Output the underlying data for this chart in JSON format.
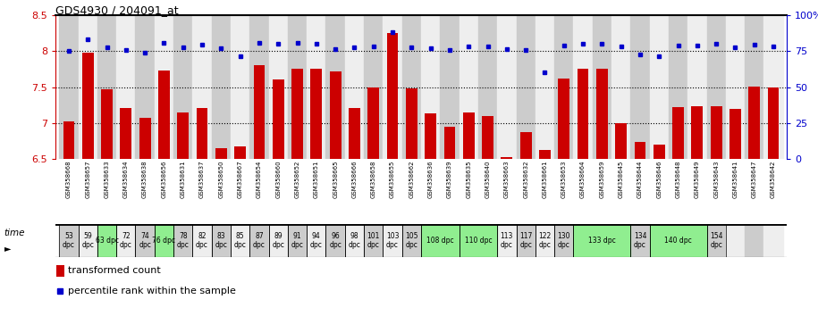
{
  "title": "GDS4930 / 204091_at",
  "labels": [
    "GSM358668",
    "GSM358657",
    "GSM358633",
    "GSM358634",
    "GSM358638",
    "GSM358656",
    "GSM358631",
    "GSM358637",
    "GSM358650",
    "GSM358667",
    "GSM358654",
    "GSM358660",
    "GSM358652",
    "GSM358651",
    "GSM358665",
    "GSM358666",
    "GSM358658",
    "GSM358655",
    "GSM358662",
    "GSM358636",
    "GSM358639",
    "GSM358635",
    "GSM358640",
    "GSM358663",
    "GSM358632",
    "GSM358661",
    "GSM358653",
    "GSM358664",
    "GSM358659",
    "GSM358645",
    "GSM358644",
    "GSM358646",
    "GSM358648",
    "GSM358649",
    "GSM358643",
    "GSM358641",
    "GSM358647",
    "GSM358642"
  ],
  "bar_values": [
    7.02,
    7.98,
    7.47,
    7.21,
    7.07,
    7.73,
    7.15,
    7.21,
    6.65,
    6.67,
    7.8,
    7.61,
    7.76,
    7.76,
    7.72,
    7.21,
    7.49,
    8.25,
    7.48,
    7.13,
    6.95,
    7.15,
    7.1,
    6.53,
    6.87,
    6.62,
    7.62,
    7.75,
    7.76,
    7.0,
    6.74,
    6.7,
    7.22,
    7.23,
    7.23,
    7.2,
    7.51,
    7.5
  ],
  "percentile_values": [
    8.0,
    8.17,
    8.05,
    8.02,
    7.98,
    8.12,
    8.05,
    8.09,
    8.04,
    7.93,
    8.12,
    8.1,
    8.12,
    8.1,
    8.03,
    8.05,
    8.07,
    8.26,
    8.05,
    8.04,
    8.02,
    8.06,
    8.07,
    8.03,
    8.02,
    7.7,
    8.08,
    8.1,
    8.1,
    8.07,
    7.95,
    7.93,
    8.08,
    8.08,
    8.1,
    8.05,
    8.09,
    8.07
  ],
  "time_groups": [
    {
      "start": 0,
      "end": 0,
      "label": "53\ndpc",
      "green": false
    },
    {
      "start": 1,
      "end": 1,
      "label": "59\ndpc",
      "green": false
    },
    {
      "start": 2,
      "end": 2,
      "label": "63 dpc",
      "green": true
    },
    {
      "start": 3,
      "end": 3,
      "label": "72\ndpc",
      "green": false
    },
    {
      "start": 4,
      "end": 4,
      "label": "74\ndpc",
      "green": false
    },
    {
      "start": 5,
      "end": 5,
      "label": "76 dpc",
      "green": true
    },
    {
      "start": 6,
      "end": 6,
      "label": "78\ndpc",
      "green": false
    },
    {
      "start": 7,
      "end": 7,
      "label": "82\ndpc",
      "green": false
    },
    {
      "start": 8,
      "end": 8,
      "label": "83\ndpc",
      "green": false
    },
    {
      "start": 9,
      "end": 9,
      "label": "85\ndpc",
      "green": false
    },
    {
      "start": 10,
      "end": 10,
      "label": "87\ndpc",
      "green": false
    },
    {
      "start": 11,
      "end": 11,
      "label": "89\ndpc",
      "green": false
    },
    {
      "start": 12,
      "end": 12,
      "label": "91\ndpc",
      "green": false
    },
    {
      "start": 13,
      "end": 13,
      "label": "94\ndpc",
      "green": false
    },
    {
      "start": 14,
      "end": 14,
      "label": "96\ndpc",
      "green": false
    },
    {
      "start": 15,
      "end": 15,
      "label": "98\ndpc",
      "green": false
    },
    {
      "start": 16,
      "end": 16,
      "label": "101\ndpc",
      "green": false
    },
    {
      "start": 17,
      "end": 17,
      "label": "103\ndpc",
      "green": false
    },
    {
      "start": 18,
      "end": 18,
      "label": "105\ndpc",
      "green": false
    },
    {
      "start": 19,
      "end": 20,
      "label": "108 dpc",
      "green": true
    },
    {
      "start": 21,
      "end": 22,
      "label": "110 dpc",
      "green": true
    },
    {
      "start": 23,
      "end": 23,
      "label": "113\ndpc",
      "green": false
    },
    {
      "start": 24,
      "end": 24,
      "label": "117\ndpc",
      "green": false
    },
    {
      "start": 25,
      "end": 25,
      "label": "122\ndpc",
      "green": false
    },
    {
      "start": 26,
      "end": 26,
      "label": "130\ndpc",
      "green": false
    },
    {
      "start": 27,
      "end": 29,
      "label": "133 dpc",
      "green": true
    },
    {
      "start": 30,
      "end": 30,
      "label": "134\ndpc",
      "green": false
    },
    {
      "start": 31,
      "end": 33,
      "label": "140 dpc",
      "green": true
    },
    {
      "start": 34,
      "end": 34,
      "label": "154\ndpc",
      "green": false
    }
  ],
  "ylim": [
    6.5,
    8.5
  ],
  "yticks": [
    6.5,
    7.0,
    7.5,
    8.0,
    8.5
  ],
  "bar_color": "#CC0000",
  "dot_color": "#0000CC",
  "bg_even": "#cccccc",
  "bg_odd": "#eeeeee",
  "green_color": "#90EE90"
}
